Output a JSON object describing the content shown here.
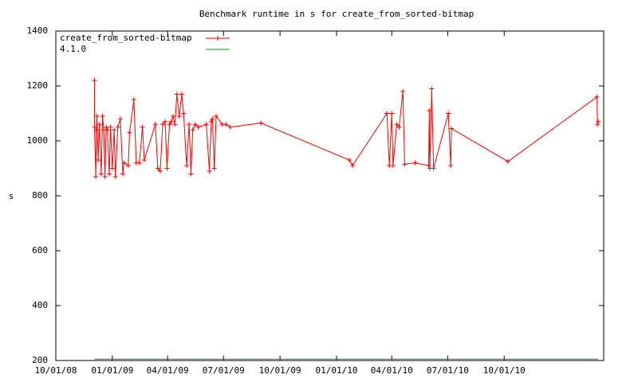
{
  "chart_data": {
    "type": "line",
    "title": "Benchmark runtime in s for create_from_sorted-bitmap",
    "y_label": "s",
    "xlim": [
      "10/01/08",
      "03/12/11"
    ],
    "xticks": [
      "10/01/08",
      "01/01/09",
      "04/01/09",
      "07/01/09",
      "10/01/09",
      "01/01/10",
      "04/01/10",
      "07/01/10",
      "10/01/10"
    ],
    "ylim": [
      200,
      1400
    ],
    "yticks": [
      200,
      400,
      600,
      800,
      1000,
      1200,
      1400
    ],
    "legend": "top-left",
    "series": [
      {
        "name": "create_from_sorted-bitmap",
        "color": "#ff0000",
        "markers": true,
        "x": [
          "12/03/08",
          "12/03/08",
          "12/05/08",
          "12/06/08",
          "12/07/08",
          "12/09/08",
          "12/11/08",
          "12/14/08",
          "12/16/08",
          "12/18/08",
          "12/20/08",
          "12/22/08",
          "12/24/08",
          "12/27/08",
          "12/29/08",
          "01/01/09",
          "01/04/09",
          "01/06/09",
          "01/10/09",
          "01/14/09",
          "01/18/09",
          "01/20/09",
          "01/27/09",
          "01/29/09",
          "02/05/09",
          "02/09/09",
          "02/14/09",
          "02/19/09",
          "02/22/09",
          "03/12/09",
          "03/16/09",
          "03/20/09",
          "03/24/09",
          "03/28/09",
          "03/31/09",
          "04/04/09",
          "04/07/09",
          "04/10/09",
          "04/13/09",
          "04/16/09",
          "04/20/09",
          "04/24/09",
          "04/27/09",
          "05/02/09",
          "05/06/09",
          "05/09/09",
          "05/12/09",
          "05/16/09",
          "05/21/09",
          "06/03/09",
          "06/08/09",
          "06/11/09",
          "06/13/09",
          "06/16/09",
          "06/19/09",
          "06/29/09",
          "07/05/09",
          "07/12/09",
          "08/31/09",
          "01/22/10",
          "01/27/10",
          "03/24/10",
          "03/28/10",
          "04/01/10",
          "04/03/10",
          "04/09/10",
          "04/13/10",
          "04/19/10",
          "04/22/10",
          "05/09/10",
          "05/31/10",
          "06/01/10",
          "06/02/10",
          "06/05/10",
          "06/08/10",
          "07/02/10",
          "07/06/10",
          "07/07/10",
          "10/07/10",
          "03/01/11",
          "03/02/11",
          "03/03/11"
        ],
        "values": [
          1220,
          1050,
          870,
          1040,
          1090,
          930,
          1060,
          880,
          1090,
          1040,
          870,
          1050,
          1040,
          880,
          1050,
          900,
          1040,
          870,
          1050,
          1080,
          880,
          920,
          910,
          1030,
          1150,
          920,
          920,
          1050,
          930,
          1060,
          900,
          890,
          1060,
          1070,
          900,
          1060,
          1070,
          1090,
          1060,
          1170,
          1090,
          1170,
          1100,
          910,
          1060,
          880,
          1040,
          1060,
          1050,
          1060,
          890,
          1070,
          1080,
          900,
          1090,
          1060,
          1060,
          1050,
          1065,
          930,
          910,
          1100,
          910,
          1100,
          910,
          1060,
          1050,
          1180,
          915,
          920,
          910,
          1110,
          900,
          1190,
          900,
          1100,
          910,
          1045,
          925,
          1160,
          1060,
          1070
        ]
      },
      {
        "name": "4.1.0",
        "color": "#00a000",
        "markers": false,
        "x": [
          "12/03/08",
          "03/03/11"
        ],
        "values": [
          205,
          205
        ]
      }
    ]
  }
}
